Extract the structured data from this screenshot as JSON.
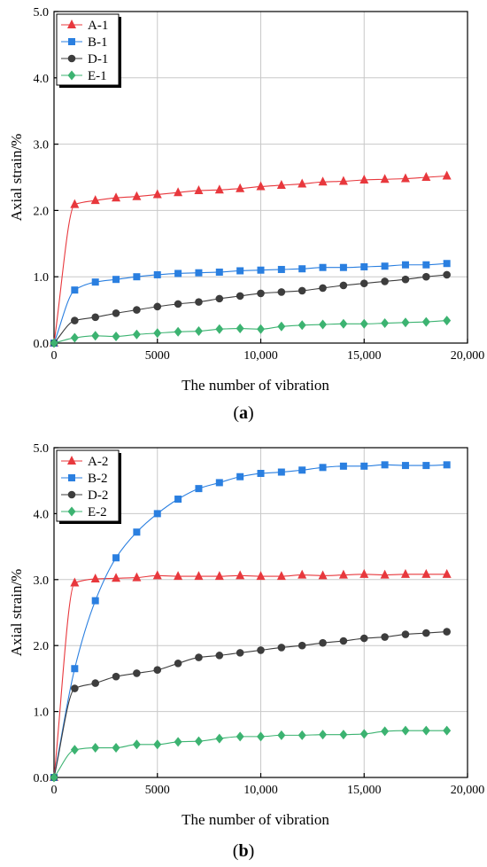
{
  "chart_data": [
    {
      "type": "line",
      "panel_label": "a",
      "xlabel": "The number of vibration",
      "ylabel": "Axial strain/%",
      "xlim": [
        0,
        20000
      ],
      "ylim": [
        0,
        5
      ],
      "x_ticks": [
        0,
        5000,
        10000,
        15000,
        20000
      ],
      "x_tick_labels": [
        "0",
        "5000",
        "10,000",
        "15,000",
        "20,000"
      ],
      "y_ticks": [
        0,
        1,
        2,
        3,
        4,
        5
      ],
      "y_tick_labels": [
        "0.0",
        "1.0",
        "2.0",
        "3.0",
        "4.0",
        "5.0"
      ],
      "grid": true,
      "legend_position": "top-left",
      "series": [
        {
          "name": "A-1",
          "color": "#e8383d",
          "marker": "triangle",
          "x": [
            0,
            1000,
            2000,
            3000,
            4000,
            5000,
            6000,
            7000,
            8000,
            9000,
            10000,
            11000,
            12000,
            13000,
            14000,
            15000,
            16000,
            17000,
            18000,
            19000
          ],
          "values": [
            0,
            2.09,
            2.15,
            2.19,
            2.21,
            2.24,
            2.27,
            2.3,
            2.31,
            2.33,
            2.36,
            2.38,
            2.4,
            2.43,
            2.44,
            2.46,
            2.47,
            2.48,
            2.5,
            2.52
          ]
        },
        {
          "name": "B-1",
          "color": "#2a7fe0",
          "marker": "square",
          "x": [
            0,
            1000,
            2000,
            3000,
            4000,
            5000,
            6000,
            7000,
            8000,
            9000,
            10000,
            11000,
            12000,
            13000,
            14000,
            15000,
            16000,
            17000,
            18000,
            19000
          ],
          "values": [
            0,
            0.8,
            0.92,
            0.96,
            1.0,
            1.03,
            1.05,
            1.06,
            1.07,
            1.09,
            1.1,
            1.11,
            1.12,
            1.14,
            1.14,
            1.15,
            1.16,
            1.18,
            1.18,
            1.2
          ]
        },
        {
          "name": "D-1",
          "color": "#3d3d3d",
          "marker": "circle",
          "x": [
            0,
            1000,
            2000,
            3000,
            4000,
            5000,
            6000,
            7000,
            8000,
            9000,
            10000,
            11000,
            12000,
            13000,
            14000,
            15000,
            16000,
            17000,
            18000,
            19000
          ],
          "values": [
            0,
            0.34,
            0.39,
            0.45,
            0.5,
            0.55,
            0.59,
            0.62,
            0.67,
            0.71,
            0.75,
            0.77,
            0.79,
            0.83,
            0.87,
            0.9,
            0.93,
            0.96,
            1.0,
            1.03
          ]
        },
        {
          "name": "E-1",
          "color": "#3cb371",
          "marker": "diamond",
          "x": [
            0,
            1000,
            2000,
            3000,
            4000,
            5000,
            6000,
            7000,
            8000,
            9000,
            10000,
            11000,
            12000,
            13000,
            14000,
            15000,
            16000,
            17000,
            18000,
            19000
          ],
          "values": [
            0,
            0.08,
            0.11,
            0.1,
            0.13,
            0.15,
            0.17,
            0.18,
            0.21,
            0.22,
            0.21,
            0.25,
            0.27,
            0.28,
            0.29,
            0.29,
            0.3,
            0.31,
            0.32,
            0.34
          ]
        }
      ]
    },
    {
      "type": "line",
      "panel_label": "b",
      "xlabel": "The number of vibration",
      "ylabel": "Axial strain/%",
      "xlim": [
        0,
        20000
      ],
      "ylim": [
        0,
        5
      ],
      "x_ticks": [
        0,
        5000,
        10000,
        15000,
        20000
      ],
      "x_tick_labels": [
        "0",
        "5000",
        "10,000",
        "15,000",
        "20,000"
      ],
      "y_ticks": [
        0,
        1,
        2,
        3,
        4,
        5
      ],
      "y_tick_labels": [
        "0.0",
        "1.0",
        "2.0",
        "3.0",
        "4.0",
        "5.0"
      ],
      "grid": true,
      "legend_position": "top-left",
      "series": [
        {
          "name": "A-2",
          "color": "#e8383d",
          "marker": "triangle",
          "x": [
            0,
            1000,
            2000,
            3000,
            4000,
            5000,
            6000,
            7000,
            8000,
            9000,
            10000,
            11000,
            12000,
            13000,
            14000,
            15000,
            16000,
            17000,
            18000,
            19000
          ],
          "values": [
            0,
            2.95,
            3.01,
            3.02,
            3.03,
            3.06,
            3.05,
            3.05,
            3.05,
            3.06,
            3.05,
            3.05,
            3.07,
            3.06,
            3.07,
            3.08,
            3.07,
            3.08,
            3.08,
            3.08
          ]
        },
        {
          "name": "B-2",
          "color": "#2a7fe0",
          "marker": "square",
          "x": [
            0,
            1000,
            2000,
            3000,
            4000,
            5000,
            6000,
            7000,
            8000,
            9000,
            10000,
            11000,
            12000,
            13000,
            14000,
            15000,
            16000,
            17000,
            18000,
            19000
          ],
          "values": [
            0,
            1.65,
            2.68,
            3.33,
            3.72,
            4.0,
            4.22,
            4.38,
            4.47,
            4.56,
            4.61,
            4.63,
            4.66,
            4.7,
            4.72,
            4.72,
            4.74,
            4.73,
            4.73,
            4.74
          ]
        },
        {
          "name": "D-2",
          "color": "#3d3d3d",
          "marker": "circle",
          "x": [
            0,
            1000,
            2000,
            3000,
            4000,
            5000,
            6000,
            7000,
            8000,
            9000,
            10000,
            11000,
            12000,
            13000,
            14000,
            15000,
            16000,
            17000,
            18000,
            19000
          ],
          "values": [
            0,
            1.35,
            1.43,
            1.53,
            1.58,
            1.63,
            1.73,
            1.82,
            1.85,
            1.89,
            1.93,
            1.97,
            2.0,
            2.04,
            2.07,
            2.11,
            2.13,
            2.17,
            2.19,
            2.21
          ]
        },
        {
          "name": "E-2",
          "color": "#3cb371",
          "marker": "diamond",
          "x": [
            0,
            1000,
            2000,
            3000,
            4000,
            5000,
            6000,
            7000,
            8000,
            9000,
            10000,
            11000,
            12000,
            13000,
            14000,
            15000,
            16000,
            17000,
            18000,
            19000
          ],
          "values": [
            0,
            0.42,
            0.45,
            0.45,
            0.5,
            0.5,
            0.54,
            0.55,
            0.59,
            0.62,
            0.62,
            0.64,
            0.64,
            0.65,
            0.65,
            0.66,
            0.7,
            0.71,
            0.71,
            0.71
          ]
        }
      ]
    }
  ]
}
